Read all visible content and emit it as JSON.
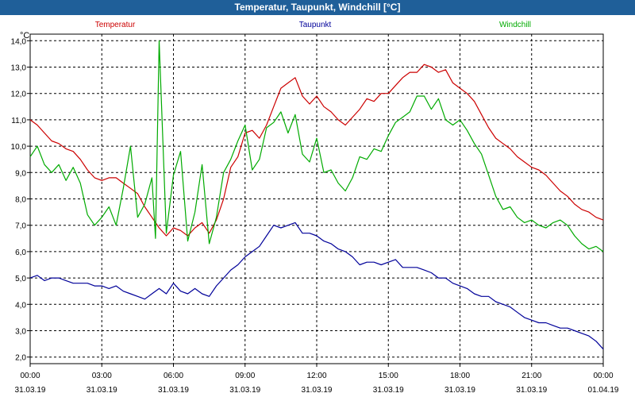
{
  "window": {
    "title": "Temperatur, Taupunkt, Windchill [°C]"
  },
  "chart_data": {
    "type": "line",
    "title": "Temperatur, Taupunkt, Windchill [°C]",
    "ylabel": "°C",
    "ylim": [
      1.75,
      14.25
    ],
    "xlim_hours": [
      0,
      24
    ],
    "grid": true,
    "yticks": [
      "2,0",
      "3,0",
      "4,0",
      "5,0",
      "6,0",
      "7,0",
      "8,0",
      "9,0",
      "10,0",
      "11,0",
      "12,0",
      "13,0",
      "14,0"
    ],
    "xticks": [
      {
        "time": "00:00",
        "date": "31.03.19"
      },
      {
        "time": "03:00",
        "date": "31.03.19"
      },
      {
        "time": "06:00",
        "date": "31.03.19"
      },
      {
        "time": "09:00",
        "date": "31.03.19"
      },
      {
        "time": "12:00",
        "date": "31.03.19"
      },
      {
        "time": "15:00",
        "date": "31.03.19"
      },
      {
        "time": "18:00",
        "date": "31.03.19"
      },
      {
        "time": "21:00",
        "date": "31.03.19"
      },
      {
        "time": "00:00",
        "date": "01.04.19"
      }
    ],
    "series": [
      {
        "name": "Temperatur",
        "color": "#cc0000",
        "x": [
          0,
          0.3,
          0.6,
          0.9,
          1.2,
          1.5,
          1.8,
          2.1,
          2.4,
          2.7,
          3.0,
          3.3,
          3.6,
          3.9,
          4.2,
          4.5,
          4.8,
          5.1,
          5.4,
          5.7,
          6.0,
          6.3,
          6.6,
          6.9,
          7.2,
          7.5,
          7.8,
          8.1,
          8.4,
          8.7,
          9.0,
          9.3,
          9.6,
          9.9,
          10.2,
          10.5,
          10.8,
          11.1,
          11.4,
          11.7,
          12.0,
          12.3,
          12.6,
          12.9,
          13.2,
          13.5,
          13.8,
          14.1,
          14.4,
          14.7,
          15.0,
          15.3,
          15.6,
          15.9,
          16.2,
          16.5,
          16.8,
          17.1,
          17.4,
          17.7,
          18.0,
          18.3,
          18.6,
          18.9,
          19.2,
          19.5,
          19.8,
          20.1,
          20.4,
          20.7,
          21.0,
          21.3,
          21.6,
          21.9,
          22.2,
          22.5,
          22.8,
          23.1,
          23.4,
          23.7,
          24.0
        ],
        "values": [
          11.0,
          10.8,
          10.5,
          10.2,
          10.1,
          9.9,
          9.8,
          9.5,
          9.1,
          8.8,
          8.7,
          8.8,
          8.8,
          8.6,
          8.4,
          8.2,
          7.7,
          7.3,
          6.9,
          6.6,
          6.9,
          6.8,
          6.6,
          6.9,
          7.1,
          6.7,
          7.2,
          8.0,
          9.2,
          9.6,
          10.5,
          10.6,
          10.3,
          10.8,
          11.5,
          12.2,
          12.4,
          12.6,
          11.9,
          11.6,
          11.9,
          11.5,
          11.3,
          11.0,
          10.8,
          11.1,
          11.4,
          11.8,
          11.7,
          12.0,
          12.0,
          12.3,
          12.6,
          12.8,
          12.8,
          13.1,
          13.0,
          12.8,
          12.9,
          12.4,
          12.2,
          12.0,
          11.7,
          11.2,
          10.7,
          10.3,
          10.1,
          9.9,
          9.6,
          9.4,
          9.2,
          9.1,
          8.9,
          8.6,
          8.3,
          8.1,
          7.8,
          7.6,
          7.5,
          7.3,
          7.2
        ]
      },
      {
        "name": "Taupunkt",
        "color": "#000099",
        "x": [
          0,
          0.3,
          0.6,
          0.9,
          1.2,
          1.5,
          1.8,
          2.1,
          2.4,
          2.7,
          3.0,
          3.3,
          3.6,
          3.9,
          4.2,
          4.5,
          4.8,
          5.1,
          5.4,
          5.7,
          6.0,
          6.3,
          6.6,
          6.9,
          7.2,
          7.5,
          7.8,
          8.1,
          8.4,
          8.7,
          9.0,
          9.3,
          9.6,
          9.9,
          10.2,
          10.5,
          10.8,
          11.1,
          11.4,
          11.7,
          12.0,
          12.3,
          12.6,
          12.9,
          13.2,
          13.5,
          13.8,
          14.1,
          14.4,
          14.7,
          15.0,
          15.3,
          15.6,
          15.9,
          16.2,
          16.5,
          16.8,
          17.1,
          17.4,
          17.7,
          18.0,
          18.3,
          18.6,
          18.9,
          19.2,
          19.5,
          19.8,
          20.1,
          20.4,
          20.7,
          21.0,
          21.3,
          21.6,
          21.9,
          22.2,
          22.5,
          22.8,
          23.1,
          23.4,
          23.7,
          24.0
        ],
        "values": [
          5.0,
          5.1,
          4.9,
          5.0,
          5.0,
          4.9,
          4.8,
          4.8,
          4.8,
          4.7,
          4.7,
          4.6,
          4.7,
          4.5,
          4.4,
          4.3,
          4.2,
          4.4,
          4.6,
          4.4,
          4.8,
          4.5,
          4.4,
          4.6,
          4.4,
          4.3,
          4.7,
          5.0,
          5.3,
          5.5,
          5.8,
          6.0,
          6.2,
          6.6,
          7.0,
          6.9,
          7.0,
          7.1,
          6.7,
          6.7,
          6.6,
          6.4,
          6.3,
          6.1,
          6.0,
          5.8,
          5.5,
          5.6,
          5.6,
          5.5,
          5.6,
          5.7,
          5.4,
          5.4,
          5.4,
          5.3,
          5.2,
          5.0,
          5.0,
          4.8,
          4.7,
          4.6,
          4.4,
          4.3,
          4.3,
          4.1,
          4.0,
          3.9,
          3.7,
          3.5,
          3.4,
          3.3,
          3.3,
          3.2,
          3.1,
          3.1,
          3.0,
          2.9,
          2.8,
          2.6,
          2.3
        ]
      },
      {
        "name": "Windchill",
        "color": "#00aa00",
        "x": [
          0,
          0.3,
          0.6,
          0.9,
          1.2,
          1.5,
          1.8,
          2.1,
          2.4,
          2.7,
          3.0,
          3.3,
          3.6,
          3.9,
          4.2,
          4.5,
          4.8,
          5.1,
          5.25,
          5.4,
          5.7,
          6.0,
          6.3,
          6.6,
          6.9,
          7.2,
          7.5,
          7.8,
          8.1,
          8.4,
          8.7,
          9.0,
          9.3,
          9.6,
          9.9,
          10.2,
          10.5,
          10.8,
          11.1,
          11.4,
          11.7,
          12.0,
          12.3,
          12.6,
          12.9,
          13.2,
          13.5,
          13.8,
          14.1,
          14.4,
          14.7,
          15.0,
          15.3,
          15.6,
          15.9,
          16.2,
          16.5,
          16.8,
          17.1,
          17.4,
          17.7,
          18.0,
          18.3,
          18.6,
          18.9,
          19.2,
          19.5,
          19.8,
          20.1,
          20.4,
          20.7,
          21.0,
          21.3,
          21.6,
          21.9,
          22.2,
          22.5,
          22.8,
          23.1,
          23.4,
          23.7,
          24.0
        ],
        "values": [
          9.6,
          10.0,
          9.3,
          9.0,
          9.3,
          8.7,
          9.2,
          8.6,
          7.4,
          7.0,
          7.3,
          7.7,
          7.0,
          8.4,
          10.0,
          7.3,
          7.8,
          8.8,
          6.5,
          14.0,
          6.7,
          8.9,
          9.8,
          6.4,
          7.5,
          9.3,
          6.3,
          7.3,
          9.0,
          9.5,
          10.2,
          10.8,
          9.1,
          9.5,
          10.7,
          10.9,
          11.3,
          10.5,
          11.2,
          9.7,
          9.4,
          10.3,
          9.0,
          9.1,
          8.6,
          8.3,
          8.8,
          9.6,
          9.5,
          9.9,
          9.8,
          10.4,
          10.9,
          11.1,
          11.3,
          11.9,
          11.9,
          11.4,
          11.8,
          11.0,
          10.8,
          11.0,
          10.6,
          10.1,
          9.7,
          8.9,
          8.1,
          7.6,
          7.7,
          7.3,
          7.1,
          7.2,
          7.0,
          6.9,
          7.1,
          7.2,
          7.0,
          6.6,
          6.3,
          6.1,
          6.2,
          6.0
        ]
      }
    ]
  }
}
